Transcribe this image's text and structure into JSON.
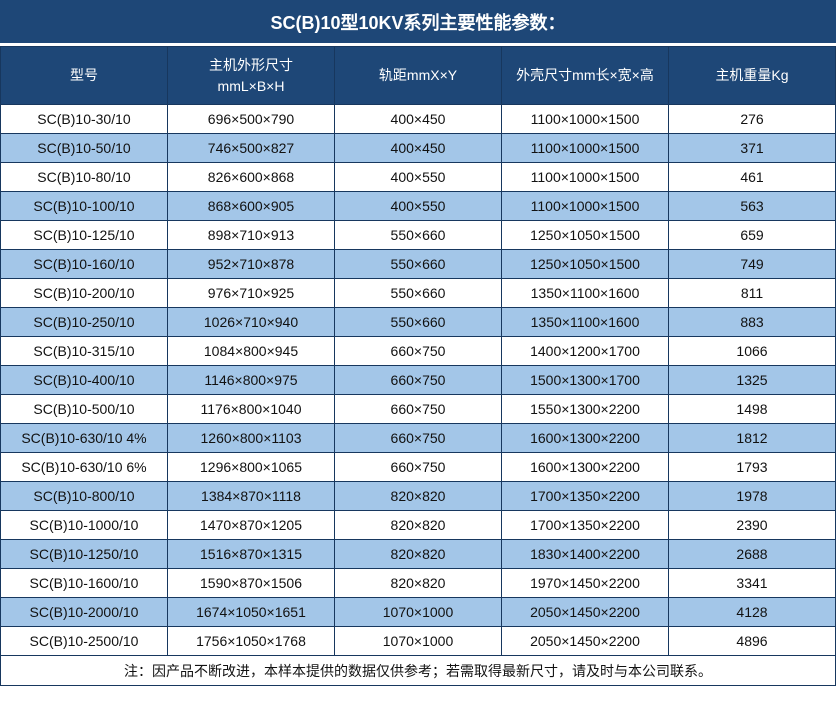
{
  "title": "SC(B)10型10KV系列主要性能参数：",
  "colors": {
    "header_bg": "#1E4777",
    "alt_row_bg": "#A3C6E8",
    "border": "#17375E",
    "title_text": "#FFFFFF",
    "cell_text": "#111111"
  },
  "table": {
    "headers": [
      "型号",
      "主机外形尺寸\nmmL×B×H",
      "轨距mmX×Y",
      "外壳尺寸mm长×宽×高",
      "主机重量Kg"
    ],
    "rows": [
      [
        "SC(B)10-30/10",
        "696×500×790",
        "400×450",
        "1100×1000×1500",
        "276"
      ],
      [
        "SC(B)10-50/10",
        "746×500×827",
        "400×450",
        "1100×1000×1500",
        "371"
      ],
      [
        "SC(B)10-80/10",
        "826×600×868",
        "400×550",
        "1100×1000×1500",
        "461"
      ],
      [
        "SC(B)10-100/10",
        "868×600×905",
        "400×550",
        "1100×1000×1500",
        "563"
      ],
      [
        "SC(B)10-125/10",
        "898×710×913",
        "550×660",
        "1250×1050×1500",
        "659"
      ],
      [
        "SC(B)10-160/10",
        "952×710×878",
        "550×660",
        "1250×1050×1500",
        "749"
      ],
      [
        "SC(B)10-200/10",
        "976×710×925",
        "550×660",
        "1350×1100×1600",
        "811"
      ],
      [
        "SC(B)10-250/10",
        "1026×710×940",
        "550×660",
        "1350×1100×1600",
        "883"
      ],
      [
        "SC(B)10-315/10",
        "1084×800×945",
        "660×750",
        "1400×1200×1700",
        "1066"
      ],
      [
        "SC(B)10-400/10",
        "1146×800×975",
        "660×750",
        "1500×1300×1700",
        "1325"
      ],
      [
        "SC(B)10-500/10",
        "1176×800×1040",
        "660×750",
        "1550×1300×2200",
        "1498"
      ],
      [
        "SC(B)10-630/10 4%",
        "1260×800×1103",
        "660×750",
        "1600×1300×2200",
        "1812"
      ],
      [
        "SC(B)10-630/10 6%",
        "1296×800×1065",
        "660×750",
        "1600×1300×2200",
        "1793"
      ],
      [
        "SC(B)10-800/10",
        "1384×870×1118",
        "820×820",
        "1700×1350×2200",
        "1978"
      ],
      [
        "SC(B)10-1000/10",
        "1470×870×1205",
        "820×820",
        "1700×1350×2200",
        "2390"
      ],
      [
        "SC(B)10-1250/10",
        "1516×870×1315",
        "820×820",
        "1830×1400×2200",
        "2688"
      ],
      [
        "SC(B)10-1600/10",
        "1590×870×1506",
        "820×820",
        "1970×1450×2200",
        "3341"
      ],
      [
        "SC(B)10-2000/10",
        "1674×1050×1651",
        "1070×1000",
        "2050×1450×2200",
        "4128"
      ],
      [
        "SC(B)10-2500/10",
        "1756×1050×1768",
        "1070×1000",
        "2050×1450×2200",
        "4896"
      ]
    ],
    "note": "注：因产品不断改进，本样本提供的数据仅供参考；若需取得最新尺寸，请及时与本公司联系。"
  }
}
